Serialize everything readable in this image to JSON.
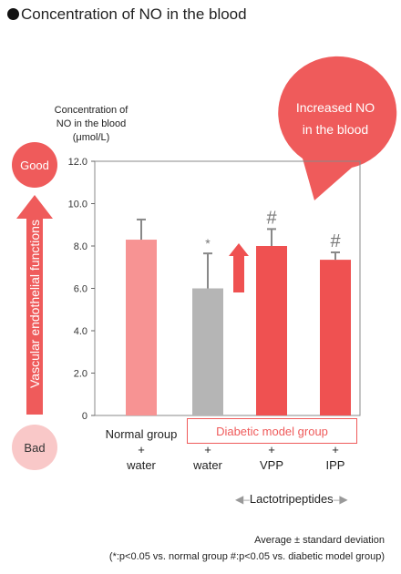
{
  "title": "Concentration of NO in the blood",
  "indicator": {
    "good_label": "Good",
    "bad_label": "Bad",
    "axis_text": "Vascular endothelial functions"
  },
  "callout": {
    "line1": "Increased NO",
    "line2": "in the blood"
  },
  "group_box_label": "Diabetic model group",
  "lacto_label": "Lactotripeptides",
  "xlabels": [
    {
      "line1": "Normal group",
      "line2": "+",
      "line3": "water"
    },
    {
      "line1": "",
      "line2": "+",
      "line3": "water"
    },
    {
      "line1": "",
      "line2": "+",
      "line3": "VPP"
    },
    {
      "line1": "",
      "line2": "+",
      "line3": "IPP"
    }
  ],
  "footnote1": "Average ± standard deviation",
  "footnote2": "(*:p<0.05 vs. normal group #:p<0.05 vs. diabetic model group)",
  "colors": {
    "normal": "#f79393",
    "water": "#b5b5b5",
    "vpp": "#ef5151",
    "ipp": "#ef5151",
    "accent": "#ef5b5b"
  },
  "chart_data": {
    "type": "bar",
    "ylabel_lines": [
      "Concentration of",
      "NO in the blood",
      "(μmol/L)"
    ],
    "ylim": [
      0,
      12
    ],
    "yticks": [
      0,
      2.0,
      4.0,
      6.0,
      8.0,
      10.0,
      12.0
    ],
    "ytick_labels": [
      "0",
      "2.0",
      "4.0",
      "6.0",
      "8.0",
      "10.0",
      "12.0"
    ],
    "categories": [
      "Normal group + water",
      "Diabetic + water",
      "Diabetic + VPP",
      "Diabetic + IPP"
    ],
    "values": [
      8.3,
      6.0,
      8.0,
      7.35
    ],
    "errors": [
      0.95,
      1.65,
      0.8,
      0.35
    ],
    "markers": [
      "",
      "*",
      "#",
      "#"
    ],
    "grid": false
  }
}
